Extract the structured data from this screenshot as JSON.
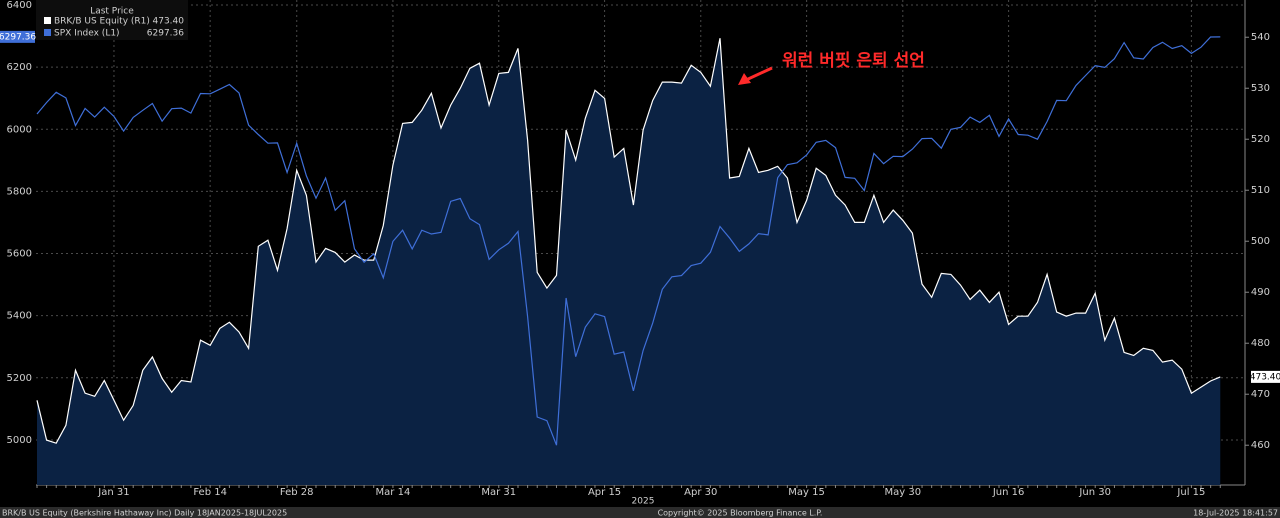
{
  "chart_data": {
    "type": "line",
    "legend_title": "Last Price",
    "x_sublabel": "2025",
    "annotation": "워런 버핏 은퇴 선언",
    "annotation_color": "#ff2a2a",
    "footer_left": "BRK/B US Equity (Berkshire Hathaway Inc)  Daily 18JAN2025-18JUL2025",
    "footer_center": "Copyright© 2025 Bloomberg Finance L.P.",
    "footer_right": "18-Jul-2025 18:41:57",
    "grid": true,
    "categories": [
      null,
      null,
      null,
      null,
      null,
      null,
      null,
      null,
      "Jan 31",
      null,
      null,
      null,
      null,
      null,
      null,
      null,
      null,
      null,
      "Feb 14",
      null,
      null,
      null,
      null,
      null,
      null,
      null,
      null,
      "Feb 28",
      null,
      null,
      null,
      null,
      null,
      null,
      null,
      null,
      null,
      "Mar 14",
      null,
      null,
      null,
      null,
      null,
      null,
      null,
      null,
      null,
      null,
      "Mar 31",
      null,
      null,
      null,
      null,
      null,
      null,
      null,
      null,
      null,
      null,
      "Apr 15",
      null,
      null,
      null,
      null,
      null,
      null,
      null,
      null,
      null,
      "Apr 30",
      null,
      null,
      null,
      null,
      null,
      null,
      null,
      null,
      null,
      null,
      "May 15",
      null,
      null,
      null,
      null,
      null,
      null,
      null,
      null,
      null,
      "May 30",
      null,
      null,
      null,
      null,
      null,
      null,
      null,
      null,
      null,
      null,
      "Jun 16",
      null,
      null,
      null,
      null,
      null,
      null,
      null,
      null,
      "Jun 30",
      null,
      null,
      null,
      null,
      null,
      null,
      null,
      null,
      null,
      "Jul 15",
      null,
      null,
      null
    ],
    "ylim": [
      4855,
      6416
    ],
    "yticks": [
      5000,
      5200,
      5400,
      5600,
      5800,
      6000,
      6200,
      6400
    ],
    "y2lim": [
      452.2,
      547.3
    ],
    "y2ticks": [
      460,
      470,
      480,
      490,
      500,
      510,
      520,
      530,
      540
    ],
    "series": [
      {
        "name": "BRK/B US Equity  (R1)",
        "color": "#ffffff",
        "fill": "#0b2243",
        "axis": "y2",
        "last_label": "473.40",
        "values": [
          468.8,
          461.0,
          460.4,
          463.9,
          474.7,
          470.2,
          469.6,
          472.7,
          468.8,
          464.9,
          467.8,
          474.7,
          477.3,
          473.1,
          470.4,
          472.7,
          472.4,
          480.6,
          479.6,
          482.9,
          484.1,
          482.2,
          479.0,
          499.0,
          500.2,
          494.3,
          502.5,
          513.9,
          509.0,
          495.9,
          498.6,
          497.8,
          495.9,
          497.3,
          496.3,
          496.3,
          503.1,
          514.9,
          523.1,
          523.3,
          525.7,
          529.0,
          522.2,
          526.7,
          530.0,
          533.9,
          534.9,
          526.7,
          532.9,
          533.1,
          537.8,
          519.8,
          493.9,
          490.8,
          493.3,
          521.8,
          515.9,
          524.1,
          529.6,
          528.0,
          516.5,
          518.2,
          507.1,
          521.8,
          527.6,
          531.2,
          531.2,
          531.0,
          534.5,
          533.1,
          530.4,
          539.8,
          512.4,
          512.7,
          518.2,
          513.5,
          513.9,
          514.7,
          512.4,
          503.7,
          508.0,
          514.3,
          512.9,
          509.0,
          507.1,
          503.7,
          503.7,
          509.0,
          503.7,
          506.1,
          504.1,
          501.6,
          491.6,
          489.0,
          493.7,
          493.5,
          491.4,
          488.6,
          490.4,
          488.0,
          490.0,
          483.7,
          485.3,
          485.3,
          488.0,
          493.5,
          486.1,
          485.3,
          485.9,
          485.9,
          489.8,
          480.6,
          484.9,
          478.2,
          477.6,
          479.0,
          478.6,
          476.3,
          476.7,
          474.9,
          470.2,
          471.4,
          472.6,
          473.4
        ]
      },
      {
        "name": "SPX Index  (L1)",
        "color": "#3f6fd8",
        "axis": "y",
        "last_label": "6297.36",
        "values": [
          6049,
          6086,
          6119,
          6101,
          6012,
          6067,
          6039,
          6071,
          6041,
          5994,
          6038,
          6061,
          6083,
          6026,
          6066,
          6068,
          6052,
          6115,
          6114,
          6129,
          6144,
          6117,
          6013,
          5983,
          5955,
          5956,
          5861,
          5955,
          5850,
          5778,
          5843,
          5739,
          5770,
          5615,
          5572,
          5599,
          5522,
          5639,
          5675,
          5615,
          5675,
          5663,
          5668,
          5768,
          5777,
          5712,
          5693,
          5581,
          5612,
          5633,
          5671,
          5397,
          5074,
          5062,
          4983,
          5457,
          5268,
          5363,
          5406,
          5397,
          5276,
          5283,
          5158,
          5288,
          5376,
          5485,
          5525,
          5529,
          5561,
          5569,
          5604,
          5687,
          5650,
          5607,
          5631,
          5664,
          5660,
          5844,
          5886,
          5892,
          5917,
          5958,
          5964,
          5941,
          5845,
          5842,
          5803,
          5922,
          5889,
          5913,
          5912,
          5936,
          5970,
          5971,
          5939,
          6000,
          6006,
          6039,
          6022,
          6045,
          5977,
          6033,
          5983,
          5981,
          5968,
          6025,
          6093,
          6092,
          6141,
          6173,
          6205,
          6199,
          6227,
          6279,
          6230,
          6226,
          6263,
          6280,
          6260,
          6269,
          6244,
          6264,
          6297,
          6297.36
        ]
      }
    ]
  }
}
